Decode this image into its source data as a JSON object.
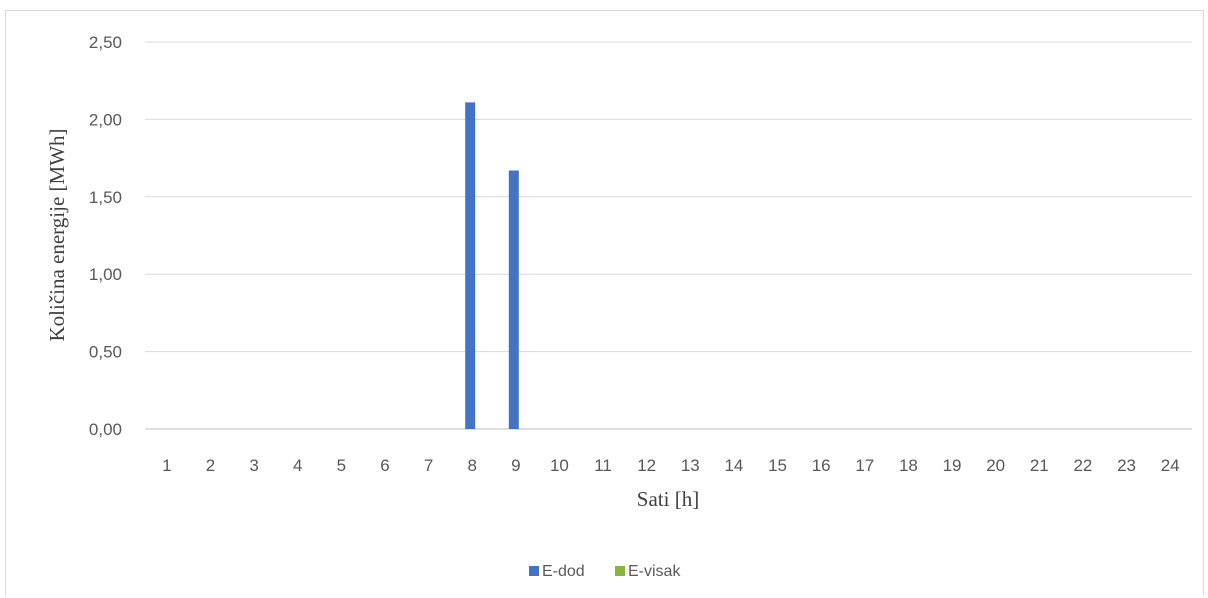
{
  "chart_data": {
    "type": "bar",
    "categories": [
      "1",
      "2",
      "3",
      "4",
      "5",
      "6",
      "7",
      "8",
      "9",
      "10",
      "11",
      "12",
      "13",
      "14",
      "15",
      "16",
      "17",
      "18",
      "19",
      "20",
      "21",
      "22",
      "23",
      "24"
    ],
    "series": [
      {
        "name": "E-dod",
        "color": "#4472c4",
        "values": [
          0,
          0,
          0,
          0,
          0,
          0,
          0,
          2.11,
          1.67,
          0,
          0,
          0,
          0,
          0,
          0,
          0,
          0,
          0,
          0,
          0,
          0,
          0,
          0,
          0
        ]
      },
      {
        "name": "E-visak",
        "color": "#8ab43c",
        "values": [
          0,
          0,
          0,
          0,
          0,
          0,
          0,
          0,
          0,
          0,
          0,
          0,
          0,
          0,
          0,
          0,
          0,
          0,
          0,
          0,
          0,
          0,
          0,
          0
        ]
      }
    ],
    "xlabel": "Sati [h]",
    "ylabel": "Količina energije [MWh]",
    "ylim": [
      0,
      2.5
    ],
    "yticks": [
      "0,00",
      "0,50",
      "1,00",
      "1,50",
      "2,00",
      "2,50"
    ],
    "grid": true,
    "legend": "bottom-center"
  }
}
